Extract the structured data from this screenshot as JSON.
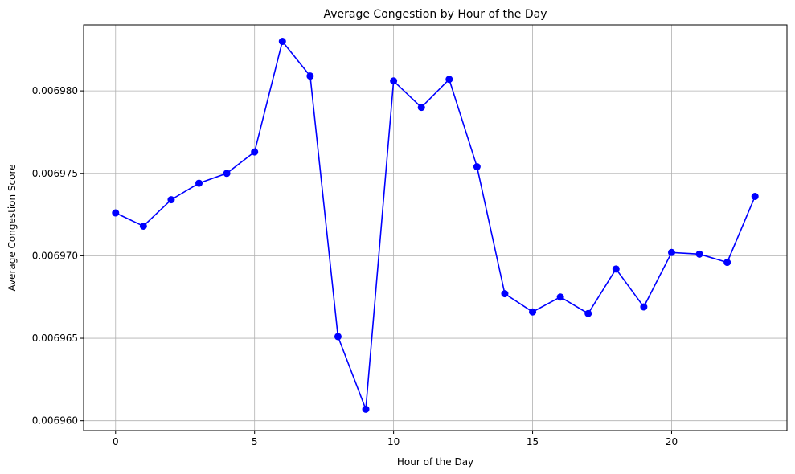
{
  "chart_data": {
    "type": "line",
    "title": "Average Congestion by Hour of the Day",
    "xlabel": "Hour of the Day",
    "ylabel": "Average Congestion Score",
    "xlim": [
      -1.15,
      24.15
    ],
    "ylim": [
      0.0069594,
      0.006984
    ],
    "xticks": [
      0,
      5,
      10,
      15,
      20
    ],
    "xtick_labels": [
      "0",
      "5",
      "10",
      "15",
      "20"
    ],
    "yticks": [
      0.00696,
      0.006965,
      0.00697,
      0.006975,
      0.00698
    ],
    "ytick_labels": [
      "0.006960",
      "0.006965",
      "0.006970",
      "0.006975",
      "0.006980"
    ],
    "grid": true,
    "series": [
      {
        "color": "#0000ff",
        "marker": "circle",
        "x": [
          0,
          1,
          2,
          3,
          4,
          5,
          6,
          7,
          8,
          9,
          10,
          11,
          12,
          13,
          14,
          15,
          16,
          17,
          18,
          19,
          20,
          21,
          22,
          23
        ],
        "y": [
          0.0069726,
          0.0069718,
          0.0069734,
          0.0069744,
          0.006975,
          0.0069763,
          0.006983,
          0.0069809,
          0.0069651,
          0.0069607,
          0.0069806,
          0.006979,
          0.0069807,
          0.0069754,
          0.0069677,
          0.0069666,
          0.0069675,
          0.0069665,
          0.0069692,
          0.0069669,
          0.0069702,
          0.0069701,
          0.0069696,
          0.0069736
        ]
      }
    ]
  }
}
